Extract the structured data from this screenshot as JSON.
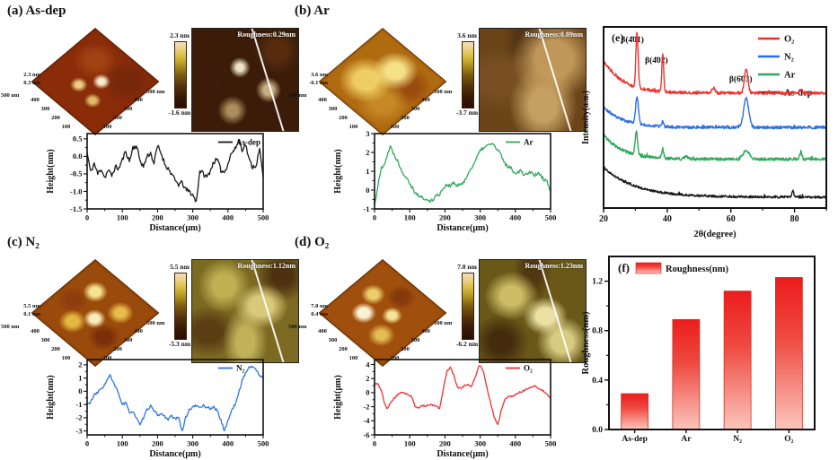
{
  "panels": {
    "a": {
      "title": "(a) As-dep",
      "z_labels": [
        "2.3 nm",
        "0.3 nm"
      ],
      "scale_left": "500 nm",
      "scale_right": "500 nm",
      "edge_ticks": [
        "400",
        "300",
        "200",
        "100"
      ],
      "colorbar_top": "2.3 nm",
      "colorbar_bottom": "-1.6 nm",
      "roughness_label": "Roughness:0.29nm"
    },
    "b": {
      "title": "(b) Ar",
      "z_labels": [
        "3.6 nm",
        "-0.1 nm"
      ],
      "scale_left": "500 nm",
      "scale_right": "500 nm",
      "edge_ticks": [
        "400",
        "300",
        "200",
        "100"
      ],
      "colorbar_top": "3.6 nm",
      "colorbar_bottom": "-3.7 nm",
      "roughness_label": "Roughness:0.89nm"
    },
    "c": {
      "title": "(c) N₂",
      "z_labels": [
        "5.5 nm",
        "0.1 nm"
      ],
      "scale_left": "500 nm",
      "scale_right": "500 nm",
      "edge_ticks": [
        "400",
        "300",
        "200",
        "100"
      ],
      "colorbar_top": "5.5 nm",
      "colorbar_bottom": "-5.3 nm",
      "roughness_label": "Roughness:1.12nm"
    },
    "d": {
      "title": "(d) O₂",
      "z_labels": [
        "7.0 nm",
        "0.4 nm"
      ],
      "scale_left": "500 nm",
      "scale_right": "500 nm",
      "edge_ticks": [
        "400",
        "300",
        "200",
        "100"
      ],
      "colorbar_top": "7.0 nm",
      "colorbar_bottom": "-6.2 nm",
      "roughness_label": "Roughness:1.23nm"
    },
    "e": {
      "label": "(e)"
    },
    "f": {
      "label": "(f)"
    }
  },
  "chart_data": [
    {
      "id": "profile_as_dep",
      "type": "line",
      "legend": "As-dep",
      "color": "#1a1a1a",
      "xlabel": "Distance(μm)",
      "ylabel": "Height(nm)",
      "xlim": [
        0,
        500
      ],
      "xticks": [
        0,
        100,
        200,
        300,
        400,
        500
      ],
      "xminor": [
        50,
        150,
        250,
        350,
        450
      ],
      "ylim": [
        -1.5,
        0.65
      ],
      "yticks": [
        0.5,
        0.0,
        -0.5,
        -1.0,
        -1.5
      ],
      "ydec": 1,
      "noise": 0.07,
      "points": [
        [
          0,
          0.1
        ],
        [
          10,
          -0.45
        ],
        [
          20,
          -0.2
        ],
        [
          30,
          -0.5
        ],
        [
          40,
          -0.35
        ],
        [
          50,
          -0.6
        ],
        [
          60,
          -0.4
        ],
        [
          70,
          -0.55
        ],
        [
          80,
          -0.3
        ],
        [
          90,
          -0.35
        ],
        [
          100,
          -0.1
        ],
        [
          110,
          0.15
        ],
        [
          120,
          -0.15
        ],
        [
          130,
          0.25
        ],
        [
          140,
          0.3
        ],
        [
          150,
          -0.1
        ],
        [
          160,
          -0.3
        ],
        [
          170,
          0.0
        ],
        [
          180,
          0.1
        ],
        [
          190,
          -0.2
        ],
        [
          200,
          0.3
        ],
        [
          210,
          0.1
        ],
        [
          220,
          -0.2
        ],
        [
          230,
          -0.35
        ],
        [
          240,
          -0.5
        ],
        [
          250,
          -0.7
        ],
        [
          260,
          -0.8
        ],
        [
          270,
          -0.75
        ],
        [
          280,
          -0.95
        ],
        [
          290,
          -1.0
        ],
        [
          300,
          -1.1
        ],
        [
          310,
          -1.3
        ],
        [
          320,
          -0.4
        ],
        [
          330,
          -0.5
        ],
        [
          340,
          -0.6
        ],
        [
          350,
          -0.4
        ],
        [
          360,
          -0.15
        ],
        [
          370,
          -0.1
        ],
        [
          380,
          -0.4
        ],
        [
          390,
          -0.45
        ],
        [
          400,
          -0.2
        ],
        [
          410,
          0.1
        ],
        [
          420,
          0.2
        ],
        [
          430,
          0.45
        ],
        [
          440,
          0.2
        ],
        [
          450,
          0.35
        ],
        [
          460,
          -0.1
        ],
        [
          470,
          -0.3
        ],
        [
          480,
          -0.25
        ],
        [
          490,
          0.2
        ],
        [
          500,
          -0.6
        ]
      ]
    },
    {
      "id": "profile_ar",
      "type": "line",
      "legend": "Ar",
      "color": "#2fa85c",
      "xlabel": "Distance(μm)",
      "ylabel": "Height(nm)",
      "xlim": [
        0,
        500
      ],
      "xticks": [
        0,
        100,
        200,
        300,
        400,
        500
      ],
      "xminor": [
        50,
        150,
        250,
        350,
        450
      ],
      "ylim": [
        -1,
        3
      ],
      "yticks": [
        3,
        2,
        1,
        0,
        -1
      ],
      "ydec": 0,
      "noise": 0.1,
      "points": [
        [
          0,
          -0.8
        ],
        [
          10,
          0.3
        ],
        [
          20,
          1.2
        ],
        [
          30,
          1.5
        ],
        [
          40,
          2.1
        ],
        [
          45,
          2.3
        ],
        [
          55,
          1.9
        ],
        [
          65,
          1.6
        ],
        [
          75,
          1.1
        ],
        [
          85,
          0.8
        ],
        [
          95,
          0.6
        ],
        [
          105,
          0.2
        ],
        [
          115,
          -0.1
        ],
        [
          125,
          -0.3
        ],
        [
          135,
          -0.4
        ],
        [
          145,
          -0.5
        ],
        [
          155,
          -0.6
        ],
        [
          165,
          -0.5
        ],
        [
          175,
          -0.3
        ],
        [
          185,
          -0.2
        ],
        [
          195,
          0.1
        ],
        [
          205,
          0.3
        ],
        [
          215,
          0.2
        ],
        [
          225,
          0.4
        ],
        [
          235,
          0.2
        ],
        [
          245,
          0.3
        ],
        [
          255,
          0.5
        ],
        [
          265,
          0.8
        ],
        [
          275,
          1.2
        ],
        [
          285,
          1.5
        ],
        [
          295,
          1.9
        ],
        [
          305,
          2.2
        ],
        [
          315,
          2.3
        ],
        [
          325,
          2.4
        ],
        [
          335,
          2.5
        ],
        [
          345,
          2.2
        ],
        [
          355,
          2.0
        ],
        [
          365,
          1.6
        ],
        [
          375,
          1.3
        ],
        [
          385,
          1.2
        ],
        [
          395,
          1.0
        ],
        [
          405,
          0.9
        ],
        [
          415,
          1.1
        ],
        [
          425,
          0.8
        ],
        [
          435,
          0.9
        ],
        [
          445,
          1.0
        ],
        [
          455,
          0.8
        ],
        [
          465,
          0.9
        ],
        [
          475,
          0.7
        ],
        [
          485,
          0.5
        ],
        [
          495,
          0.3
        ],
        [
          500,
          -0.1
        ]
      ]
    },
    {
      "id": "profile_n2",
      "type": "line",
      "legend": "N₂",
      "color": "#2e74e0",
      "xlabel": "Distance(μm)",
      "ylabel": "Height(nm)",
      "xlim": [
        0,
        500
      ],
      "xticks": [
        0,
        100,
        200,
        300,
        400,
        500
      ],
      "xminor": [
        50,
        150,
        250,
        350,
        450
      ],
      "ylim": [
        -3.3,
        2.4
      ],
      "yticks": [
        2,
        1,
        0,
        -1,
        -2,
        -3
      ],
      "ydec": 0,
      "noise": 0.1,
      "points": [
        [
          0,
          -1.0
        ],
        [
          10,
          -0.8
        ],
        [
          20,
          -0.3
        ],
        [
          30,
          -0.1
        ],
        [
          40,
          0.2
        ],
        [
          50,
          0.5
        ],
        [
          60,
          1.0
        ],
        [
          65,
          1.2
        ],
        [
          75,
          0.6
        ],
        [
          85,
          0.1
        ],
        [
          95,
          -0.6
        ],
        [
          100,
          -1.0
        ],
        [
          110,
          -0.9
        ],
        [
          120,
          -1.6
        ],
        [
          130,
          -1.5
        ],
        [
          140,
          -2.0
        ],
        [
          150,
          -2.6
        ],
        [
          160,
          -2.0
        ],
        [
          170,
          -1.4
        ],
        [
          180,
          -1.1
        ],
        [
          190,
          -1.5
        ],
        [
          200,
          -1.8
        ],
        [
          210,
          -1.7
        ],
        [
          220,
          -1.9
        ],
        [
          230,
          -2.1
        ],
        [
          240,
          -1.9
        ],
        [
          250,
          -2.1
        ],
        [
          260,
          -2.0
        ],
        [
          270,
          -3.0
        ],
        [
          280,
          -2.0
        ],
        [
          290,
          -1.4
        ],
        [
          300,
          -1.2
        ],
        [
          310,
          -1.1
        ],
        [
          320,
          -1.2
        ],
        [
          330,
          -1.1
        ],
        [
          340,
          -1.2
        ],
        [
          350,
          -1.3
        ],
        [
          360,
          -1.2
        ],
        [
          370,
          -1.5
        ],
        [
          380,
          -2.2
        ],
        [
          390,
          -3.0
        ],
        [
          400,
          -2.2
        ],
        [
          410,
          -1.5
        ],
        [
          420,
          -1.0
        ],
        [
          430,
          -0.2
        ],
        [
          440,
          0.8
        ],
        [
          450,
          1.4
        ],
        [
          460,
          1.8
        ],
        [
          470,
          1.9
        ],
        [
          480,
          1.6
        ],
        [
          490,
          1.2
        ],
        [
          500,
          1.0
        ]
      ]
    },
    {
      "id": "profile_o2",
      "type": "line",
      "legend": "O₂",
      "color": "#ee3230",
      "xlabel": "Distance(μm)",
      "ylabel": "Height(μm)",
      "xlim": [
        0,
        500
      ],
      "xticks": [
        0,
        100,
        200,
        300,
        400,
        500
      ],
      "xminor": [
        50,
        150,
        250,
        350,
        450
      ],
      "ylim": [
        -6,
        4.7
      ],
      "yticks": [
        4,
        2,
        0,
        -2,
        -4,
        -6
      ],
      "ydec": 0,
      "noise": 0.12,
      "points": [
        [
          0,
          1.4
        ],
        [
          10,
          1.2
        ],
        [
          20,
          0.2
        ],
        [
          30,
          -1.8
        ],
        [
          35,
          -2.3
        ],
        [
          45,
          -1.5
        ],
        [
          55,
          -0.8
        ],
        [
          65,
          -0.4
        ],
        [
          75,
          0.1
        ],
        [
          85,
          0.0
        ],
        [
          95,
          -0.3
        ],
        [
          105,
          -0.5
        ],
        [
          115,
          -2.0
        ],
        [
          125,
          -2.2
        ],
        [
          135,
          -1.8
        ],
        [
          145,
          -1.9
        ],
        [
          155,
          -1.7
        ],
        [
          165,
          -1.8
        ],
        [
          175,
          -1.9
        ],
        [
          185,
          -2.3
        ],
        [
          195,
          0.5
        ],
        [
          205,
          3.0
        ],
        [
          215,
          3.6
        ],
        [
          225,
          2.5
        ],
        [
          235,
          0.8
        ],
        [
          245,
          0.6
        ],
        [
          255,
          1.0
        ],
        [
          265,
          1.2
        ],
        [
          275,
          0.9
        ],
        [
          285,
          2.0
        ],
        [
          295,
          3.6
        ],
        [
          300,
          3.9
        ],
        [
          310,
          2.8
        ],
        [
          320,
          0.5
        ],
        [
          330,
          -1.5
        ],
        [
          340,
          -3.5
        ],
        [
          350,
          -4.6
        ],
        [
          360,
          -2.5
        ],
        [
          370,
          -1.0
        ],
        [
          380,
          -0.6
        ],
        [
          390,
          -0.5
        ],
        [
          400,
          -0.3
        ],
        [
          410,
          0.0
        ],
        [
          420,
          0.2
        ],
        [
          430,
          0.5
        ],
        [
          440,
          0.6
        ],
        [
          450,
          1.0
        ],
        [
          460,
          0.8
        ],
        [
          470,
          0.5
        ],
        [
          480,
          0.2
        ],
        [
          490,
          -0.3
        ],
        [
          500,
          -0.8
        ]
      ]
    },
    {
      "id": "xrd",
      "type": "line",
      "xlabel": "2θ(degree)",
      "ylabel": "Intensity(a.u.)",
      "xlim": [
        20,
        90
      ],
      "xticks": [
        20,
        40,
        60,
        80
      ],
      "xminor": [
        30,
        50,
        70,
        90
      ],
      "intensity_units": "arbitrary (relative 0-1 of panel height)",
      "series": [
        {
          "name": "O₂",
          "color": "#ee3230",
          "base": 0.635,
          "start_boost": 0.18,
          "decay_tau": 6,
          "noise": 0.008,
          "peaks": [
            [
              30.5,
              0.3,
              0.35
            ],
            [
              38.6,
              0.21,
              0.28
            ],
            [
              54.5,
              0.03,
              0.5
            ],
            [
              64.8,
              0.135,
              0.55
            ],
            [
              82,
              0.02,
              0.45
            ]
          ]
        },
        {
          "name": "N₂",
          "color": "#2b6fe8",
          "base": 0.445,
          "start_boost": 0.115,
          "decay_tau": 6,
          "noise": 0.008,
          "peaks": [
            [
              30.5,
              0.145,
              0.45
            ],
            [
              38.6,
              0.03,
              0.3
            ],
            [
              64.8,
              0.16,
              0.8
            ]
          ]
        },
        {
          "name": "Ar",
          "color": "#2fa85c",
          "base": 0.27,
          "start_boost": 0.135,
          "decay_tau": 6,
          "noise": 0.008,
          "peaks": [
            [
              30.3,
              0.125,
              0.4
            ],
            [
              38.6,
              0.05,
              0.3
            ],
            [
              46,
              0.015,
              0.5
            ],
            [
              64.8,
              0.05,
              0.9
            ],
            [
              82,
              0.035,
              0.35
            ]
          ]
        },
        {
          "name": "As-dep",
          "color": "#1a1a1a",
          "base": 0.06,
          "start_boost": 0.165,
          "decay_tau": 10,
          "noise": 0.006,
          "peaks": [
            [
              79.5,
              0.035,
              0.3
            ]
          ]
        }
      ],
      "peak_assignments": [
        {
          "label": "β(4̄01)",
          "two_theta": 30.5,
          "dx": -5
        },
        {
          "label": "β(4̄02)",
          "two_theta": 38.6,
          "dx": -7
        },
        {
          "label": "β(6̄03)",
          "two_theta": 64.8,
          "dx": -6
        }
      ]
    },
    {
      "id": "roughness_bars",
      "type": "bar",
      "legend": "Roughness(nm)",
      "ylabel": "Roughness(nm)",
      "categories": [
        "As-dep",
        "Ar",
        "N₂",
        "O₂"
      ],
      "values": [
        0.29,
        0.89,
        1.12,
        1.23
      ],
      "ylim": [
        0,
        1.4
      ],
      "yticks": [
        0.0,
        0.4,
        0.8,
        1.2
      ],
      "yminor": [
        0.2,
        0.6,
        1.0
      ],
      "bar_gradient": [
        [
          "0%",
          "#ec1c1c"
        ],
        [
          "40%",
          "#ef4a40"
        ],
        [
          "100%",
          "#fbc6bd"
        ]
      ]
    }
  ]
}
